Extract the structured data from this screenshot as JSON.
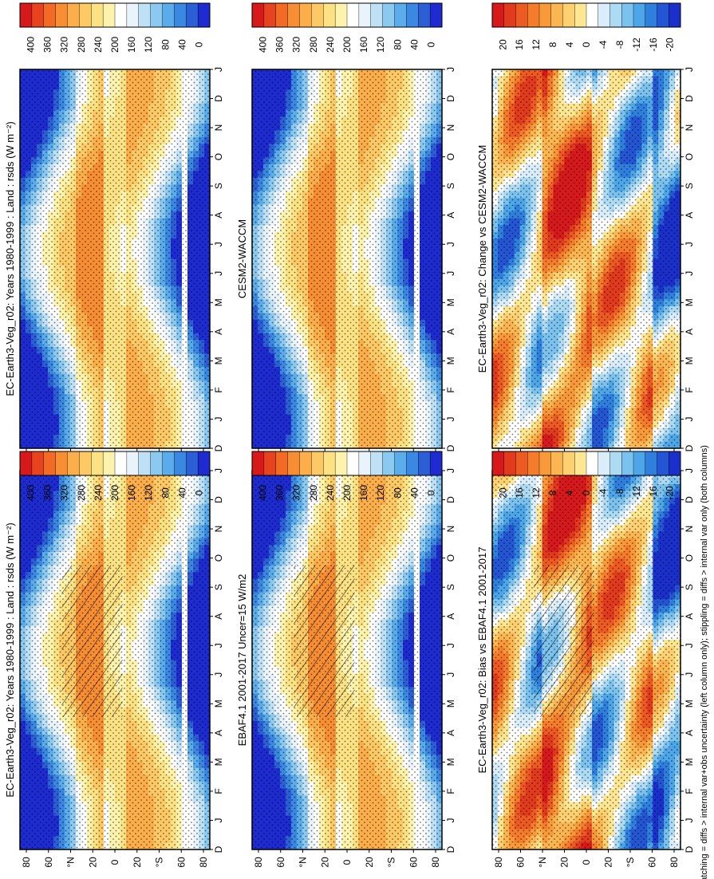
{
  "figure": {
    "footnote": "hatching = diffs > internal var+obs uncertainty (left column only); stippling = diffs > internal var only (both columns)"
  },
  "colorbars": [
    {
      "ticks": [
        "400",
        "360",
        "320",
        "280",
        "240",
        "200",
        "160",
        "120",
        "80",
        "40",
        "0"
      ],
      "colors": [
        "#d7191c",
        "#e8431f",
        "#f26a23",
        "#f88e33",
        "#fbae4a",
        "#fdc965",
        "#fde284",
        "#fdf3ac",
        "#ffffff",
        "#e8f3fb",
        "#bfe1f6",
        "#8cc9f0",
        "#5aacea",
        "#3a88e1",
        "#2c5fd6",
        "#1d2bd0"
      ]
    },
    {
      "ticks": [
        "20",
        "16",
        "12",
        "8",
        "4",
        "0",
        "-4",
        "-8",
        "-12",
        "-16",
        "-20"
      ],
      "colors": [
        "#d7191c",
        "#e23a1d",
        "#ed5a22",
        "#f47c2a",
        "#f89a3a",
        "#fbb652",
        "#fdd071",
        "#fde792",
        "#ffffff",
        "#d9eefa",
        "#aedbf4",
        "#7cc2ee",
        "#4da6e8",
        "#2f80de",
        "#2456d4",
        "#1b2fcb"
      ]
    }
  ],
  "chart_data": [
    {
      "type": "heatmap",
      "title": "EC-Earth3-Veg_r02: Years 1980-1999 : Land : rsds (W m⁻²)",
      "x_ticks": [
        "D",
        "J",
        "F",
        "M",
        "A",
        "M",
        "J",
        "J",
        "A",
        "S",
        "O",
        "N",
        "D",
        "J"
      ],
      "y_ticks": [
        "80",
        "60",
        "°N",
        "20",
        "0",
        "20",
        "°S",
        "60",
        "80"
      ],
      "colorbar": 0,
      "hatching": true,
      "stippling": true
    },
    {
      "type": "heatmap",
      "title": "EBAF4.1 2001-2017 Uncer=15 W/m2",
      "x_ticks": [
        "D",
        "J",
        "F",
        "M",
        "A",
        "M",
        "J",
        "J",
        "A",
        "S",
        "O",
        "N",
        "D",
        "J"
      ],
      "y_ticks": [
        "80",
        "60",
        "°N",
        "20",
        "0",
        "20",
        "°S",
        "60",
        "80"
      ],
      "colorbar": 0,
      "hatching": true,
      "stippling": true
    },
    {
      "type": "heatmap",
      "title": "EC-Earth3-Veg_r02: Bias vs EBAF4.1 2001-2017",
      "x_ticks": [
        "D",
        "J",
        "F",
        "M",
        "A",
        "M",
        "J",
        "J",
        "A",
        "S",
        "O",
        "N",
        "D",
        "J"
      ],
      "y_ticks": [
        "80",
        "60",
        "°N",
        "20",
        "0",
        "20",
        "°S",
        "60",
        "80"
      ],
      "colorbar": 1,
      "hatching": true,
      "stippling": true
    },
    {
      "type": "heatmap",
      "title": "EC-Earth3-Veg_r02: Years 1980-1999 : Land : rsds (W m⁻²)",
      "x_ticks": [
        "D",
        "J",
        "F",
        "M",
        "A",
        "M",
        "J",
        "J",
        "A",
        "S",
        "O",
        "N",
        "D",
        "J"
      ],
      "y_ticks": [
        "80",
        "60",
        "°N",
        "20",
        "0",
        "20",
        "°S",
        "60",
        "80"
      ],
      "colorbar": 0,
      "stippling": true
    },
    {
      "type": "heatmap",
      "title": "CESM2-WACCM",
      "x_ticks": [
        "D",
        "J",
        "F",
        "M",
        "A",
        "M",
        "J",
        "J",
        "A",
        "S",
        "O",
        "N",
        "D",
        "J"
      ],
      "y_ticks": [
        "80",
        "60",
        "°N",
        "20",
        "0",
        "20",
        "°S",
        "60",
        "80"
      ],
      "colorbar": 0,
      "stippling": true
    },
    {
      "type": "heatmap",
      "title": "EC-Earth3-Veg_r02: Change vs CESM2-WACCM",
      "x_ticks": [
        "D",
        "J",
        "F",
        "M",
        "A",
        "M",
        "J",
        "J",
        "A",
        "S",
        "O",
        "N",
        "D",
        "J"
      ],
      "y_ticks": [
        "80",
        "60",
        "°N",
        "20",
        "0",
        "20",
        "°S",
        "60",
        "80"
      ],
      "colorbar": 1,
      "stippling": true
    }
  ]
}
